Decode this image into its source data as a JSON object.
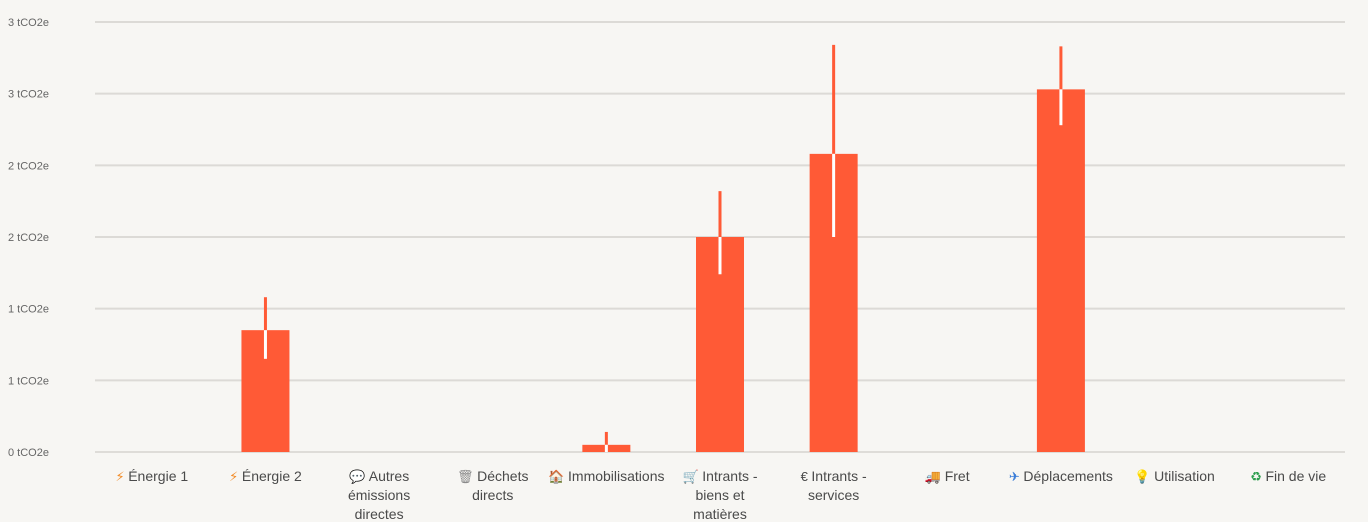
{
  "chart_data": {
    "type": "bar",
    "title": "",
    "xlabel": "",
    "ylabel": "",
    "unit": "tCO2e",
    "ylim": [
      0,
      3.0
    ],
    "yticks": [
      {
        "value": 0,
        "label": "0 tCO2e"
      },
      {
        "value": 0.5,
        "label": "1 tCO2e"
      },
      {
        "value": 1.0,
        "label": "1 tCO2e"
      },
      {
        "value": 1.5,
        "label": "2 tCO2e"
      },
      {
        "value": 2.0,
        "label": "2 tCO2e"
      },
      {
        "value": 2.5,
        "label": "3 tCO2e"
      },
      {
        "value": 3.0,
        "label": "3 tCO2e"
      }
    ],
    "grid": true,
    "bar_color": "#ff5a36",
    "categories": [
      {
        "icon": "lightning-icon",
        "glyph": "⚡",
        "icon_color": "#f28c28",
        "lines": [
          "Énergie 1"
        ]
      },
      {
        "icon": "lightning-icon",
        "glyph": "⚡",
        "icon_color": "#f28c28",
        "lines": [
          "Énergie 2"
        ]
      },
      {
        "icon": "speech-bubble-icon",
        "glyph": "💬",
        "icon_color": "#7fb3e6",
        "lines": [
          "Autres",
          "émissions",
          "directes"
        ]
      },
      {
        "icon": "trash-icon",
        "glyph": "🗑",
        "icon_color": "#8a8a8a",
        "lines": [
          "Déchets",
          "directs"
        ]
      },
      {
        "icon": "house-icon",
        "glyph": "🏠",
        "icon_color": "#e0683c",
        "lines": [
          "Immobilisations"
        ]
      },
      {
        "icon": "cart-icon",
        "glyph": "🛒",
        "icon_color": "#8a8a8a",
        "lines": [
          "Intrants -",
          "biens et",
          "matières"
        ]
      },
      {
        "icon": "euro-icon",
        "glyph": "€",
        "icon_color": "#4a4a4a",
        "lines": [
          "Intrants -",
          "services"
        ]
      },
      {
        "icon": "truck-icon",
        "glyph": "🚚",
        "icon_color": "#3b7dd8",
        "lines": [
          "Fret"
        ]
      },
      {
        "icon": "airplane-icon",
        "glyph": "✈",
        "icon_color": "#3b7dd8",
        "lines": [
          "Déplacements"
        ]
      },
      {
        "icon": "lightbulb-icon",
        "glyph": "💡",
        "icon_color": "#f2c230",
        "lines": [
          "Utilisation"
        ]
      },
      {
        "icon": "recycle-icon",
        "glyph": "♻",
        "icon_color": "#2e9e4f",
        "lines": [
          "Fin de vie"
        ]
      }
    ],
    "series": [
      {
        "values": [
          0,
          0.85,
          0,
          0,
          0.05,
          1.5,
          2.08,
          0,
          2.53,
          0,
          0
        ],
        "err_low": [
          0,
          0.65,
          0,
          0,
          0.0,
          1.24,
          1.5,
          0,
          2.28,
          0,
          0
        ],
        "err_high": [
          0,
          1.08,
          0,
          0,
          0.14,
          1.82,
          2.84,
          0,
          2.83,
          0,
          0
        ]
      }
    ]
  }
}
